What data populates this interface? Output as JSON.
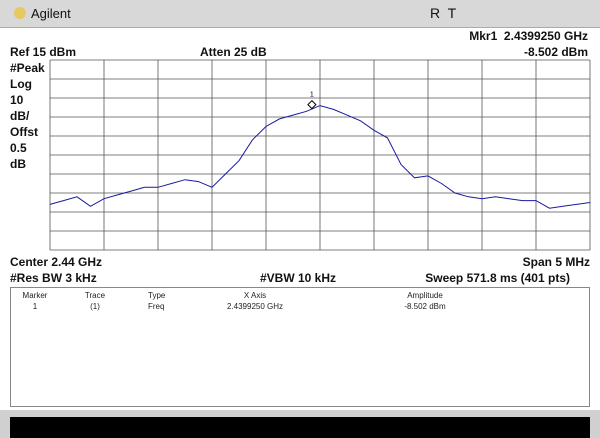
{
  "header": {
    "brand": "Agilent",
    "status": "R  T",
    "marker_readout": "Mkr1  2.4399250 GHz",
    "marker_amplitude": "-8.502 dBm",
    "ref": "Ref 15 dBm",
    "atten": "Atten 25 dB"
  },
  "left_labels": [
    "#Peak",
    "Log",
    "10",
    "dB/",
    "Offst",
    "0.5",
    "dB"
  ],
  "footer": {
    "center": "Center 2.44 GHz",
    "span": "Span 5 MHz",
    "rbw": "#Res BW 3 kHz",
    "vbw": "#VBW 10 kHz",
    "sweep": "Sweep 571.8 ms (401 pts)"
  },
  "table": {
    "headers": [
      "Marker",
      "Trace",
      "Type",
      "X Axis",
      "Amplitude"
    ],
    "rows": [
      [
        "1",
        "(1)",
        "Freq",
        "2.4399250 GHz",
        "-8.502 dBm"
      ]
    ]
  },
  "chart_data": {
    "type": "line",
    "color": "#1a1aa0",
    "x": [
      2.4375,
      2.437625,
      2.43775,
      2.437875,
      2.438,
      2.438125,
      2.43825,
      2.438375,
      2.4385,
      2.438625,
      2.43875,
      2.438875,
      2.439,
      2.439125,
      2.43925,
      2.439375,
      2.4395,
      2.439625,
      2.43975,
      2.439875,
      2.44,
      2.440125,
      2.44025,
      2.440375,
      2.4405,
      2.440625,
      2.44075,
      2.440875,
      2.441,
      2.441125,
      2.44125,
      2.441375,
      2.4415,
      2.441625,
      2.44175,
      2.441875,
      2.442,
      2.442125,
      2.44225,
      2.442375,
      2.4425
    ],
    "values": [
      -61,
      -59,
      -57,
      -62,
      -58,
      -56,
      -54,
      -52,
      -52,
      -50,
      -48,
      -49,
      -52,
      -45,
      -38,
      -27,
      -20,
      -16,
      -14,
      -12,
      -9,
      -11,
      -14,
      -17,
      -22,
      -26,
      -40,
      -47,
      -46,
      -50,
      -55,
      -57,
      -58,
      -57,
      -58,
      -59,
      -59,
      -63,
      -62,
      -61,
      -60
    ],
    "xlim": [
      2.4375,
      2.4425
    ],
    "ylim": [
      -85,
      15
    ],
    "xticks": [
      2.4375,
      2.438,
      2.4385,
      2.439,
      2.4395,
      2.44,
      2.4405,
      2.441,
      2.4415,
      2.442,
      2.4425
    ],
    "yticks": [
      15,
      5,
      -5,
      -15,
      -25,
      -35,
      -45,
      -55,
      -65,
      -75,
      -85
    ],
    "grid": true,
    "marker": {
      "label": "1",
      "x": 2.439925,
      "value": -8.502
    }
  }
}
